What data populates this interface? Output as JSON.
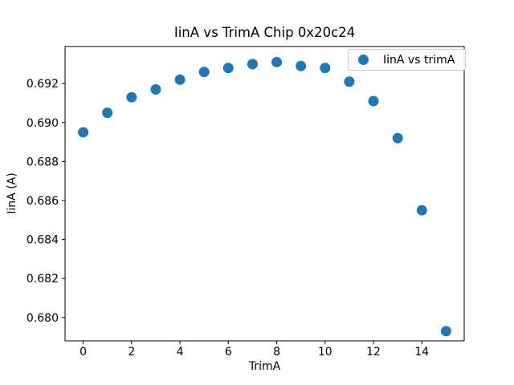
{
  "figure": {
    "background": "#ffffff",
    "text_color": "#000000",
    "spine_color": "#000000"
  },
  "title": "IinA vs TrimA Chip 0x20c24",
  "axes": {
    "xlabel": "TrimA",
    "ylabel": "IinA (A)"
  },
  "legend": {
    "label": "IinA vs trimA",
    "marker_color": "#1f77b4",
    "border_color": "#cccccc",
    "position": "upper right"
  },
  "chart_data": {
    "type": "scatter",
    "title": "IinA vs TrimA Chip 0x20c24",
    "xlabel": "TrimA",
    "ylabel": "IinA (A)",
    "grid": false,
    "legend_position": "upper right",
    "series": [
      {
        "name": "IinA vs trimA",
        "color": "#1f77b4",
        "marker": "circle",
        "marker_diameter_px": 13,
        "x": [
          0,
          1,
          2,
          3,
          4,
          5,
          6,
          7,
          8,
          9,
          10,
          11,
          12,
          13,
          14,
          15
        ],
        "y": [
          0.6895,
          0.6905,
          0.6913,
          0.6917,
          0.6922,
          0.6926,
          0.6928,
          0.693,
          0.6931,
          0.6929,
          0.6928,
          0.6921,
          0.6911,
          0.6892,
          0.6855,
          0.6793
        ]
      }
    ],
    "xlim": [
      -0.75,
      15.75
    ],
    "ylim": [
      0.6788,
      0.6939
    ],
    "xticks": [
      0,
      2,
      4,
      6,
      8,
      10,
      12,
      14
    ],
    "yticks": [
      0.68,
      0.682,
      0.684,
      0.686,
      0.688,
      0.69,
      0.692
    ],
    "xtick_decimals": 0,
    "ytick_decimals": 3
  }
}
